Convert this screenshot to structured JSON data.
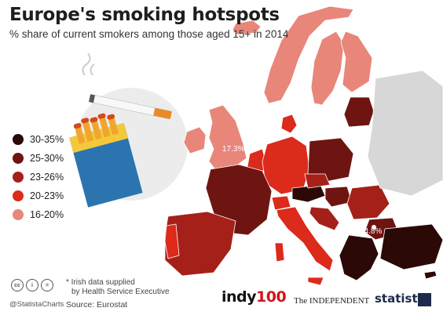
{
  "title": "Europe's smoking hotspots",
  "subtitle": "% share of current smokers among those aged 15+ in 2014",
  "legend": [
    {
      "label": "30-35%",
      "color": "#2b0906"
    },
    {
      "label": "25-30%",
      "color": "#6e1512"
    },
    {
      "label": "23-26%",
      "color": "#a6201a"
    },
    {
      "label": "20-23%",
      "color": "#dc2a1b"
    },
    {
      "label": "16-20%",
      "color": "#e8867a"
    }
  ],
  "chart_data": {
    "type": "choropleth",
    "title": "Europe's smoking hotspots",
    "subtitle": "% share of current smokers among those aged 15+ in 2014",
    "labeled_values": [
      {
        "label": "16.7%",
        "value": 16.7
      },
      {
        "label": "17.3%",
        "value": 17.3
      },
      {
        "label": "34.8%",
        "value": 34.8
      }
    ],
    "bins": [
      "30-35%",
      "25-30%",
      "23-26%",
      "20-23%",
      "16-20%"
    ]
  },
  "note": {
    "line1": "* Irish data supplied",
    "line2": "by Health Service Executive"
  },
  "source": "Source: Eurostat",
  "handle": "@StatistaCharts",
  "cc_icons": [
    "cc",
    "i",
    "="
  ],
  "logos": {
    "indy_a": "indy",
    "indy_b": "100",
    "independent": "The INDEPENDENT",
    "statista": "statista"
  }
}
